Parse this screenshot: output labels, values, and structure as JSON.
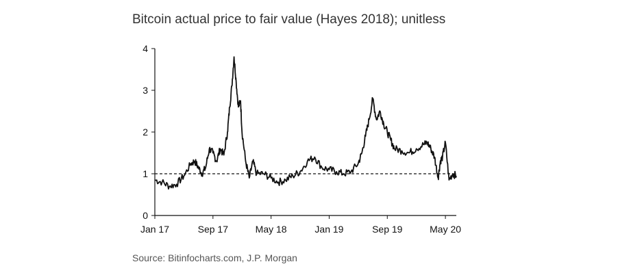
{
  "chart_data": {
    "type": "line",
    "title": "Bitcoin actual price to fair value (Hayes 2018); unitless",
    "source": "Source: Bitinfocharts.com, J.P. Morgan",
    "xlabel": "",
    "ylabel": "",
    "ylim": [
      0,
      4
    ],
    "yticks": [
      0,
      1,
      2,
      3,
      4
    ],
    "xticks": [
      "Jan 17",
      "Sep 17",
      "May 18",
      "Jan 19",
      "Sep 19",
      "May 20"
    ],
    "reference_line": {
      "y": 1,
      "style": "dashed"
    },
    "grid": false,
    "series": [
      {
        "name": "Actual price to fair value",
        "color": "#111111",
        "x_months": [
          0,
          1,
          2,
          3,
          4,
          5,
          5.5,
          6,
          6.5,
          7,
          7.5,
          8,
          8.5,
          9,
          9.5,
          10,
          10.3,
          10.6,
          10.9,
          11.2,
          11.5,
          11.8,
          12,
          12.5,
          13,
          13.5,
          14,
          15,
          16,
          17,
          18,
          19,
          20,
          21,
          22,
          23,
          24,
          25,
          26,
          27,
          28,
          28.5,
          29,
          29.5,
          30,
          30.5,
          31,
          31.5,
          32,
          32.5,
          33,
          34,
          35,
          36,
          37,
          37.5,
          38,
          38.5,
          39,
          39.3,
          39.6,
          40,
          40.5,
          41,
          41.5
        ],
        "values": [
          0.85,
          0.8,
          0.7,
          0.75,
          0.95,
          1.25,
          1.3,
          1.15,
          1.0,
          1.15,
          1.6,
          1.5,
          1.3,
          1.6,
          1.45,
          2.0,
          2.6,
          3.1,
          3.8,
          3.2,
          2.6,
          2.75,
          2.0,
          1.3,
          0.9,
          1.3,
          1.0,
          1.0,
          0.9,
          0.8,
          0.85,
          0.95,
          1.05,
          1.3,
          1.4,
          1.15,
          1.1,
          1.05,
          1.0,
          1.05,
          1.25,
          1.5,
          1.9,
          2.3,
          2.8,
          2.3,
          2.5,
          2.2,
          2.0,
          1.8,
          1.6,
          1.55,
          1.5,
          1.6,
          1.7,
          1.75,
          1.6,
          1.4,
          0.9,
          1.3,
          1.4,
          1.75,
          0.85,
          1.0,
          0.95
        ]
      }
    ]
  }
}
